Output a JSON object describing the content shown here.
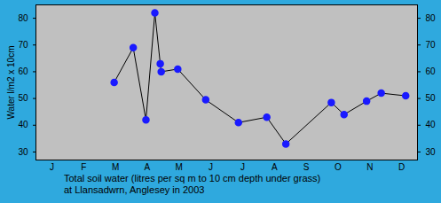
{
  "chart_data": {
    "type": "line",
    "title": "Total soil water (litres per sq m to 10 cm depth under grass)",
    "subtitle": "at Llansadwrn, Anglesey in 2003",
    "y_label": "Water l/m2 x 10cm",
    "x": [
      2.46,
      3.06,
      3.46,
      3.74,
      3.91,
      3.94,
      4.46,
      5.34,
      6.37,
      7.26,
      7.86,
      9.29,
      9.69,
      10.4,
      10.86,
      11.63
    ],
    "values": [
      56,
      69,
      42,
      82,
      63,
      60,
      61,
      49.5,
      41,
      43,
      33,
      48.5,
      44,
      49,
      52,
      51
    ],
    "color": "#1a1aff",
    "marker": "circle",
    "xlim": [
      0,
      12
    ],
    "xticks": [
      {
        "value": 0.5,
        "label": "J"
      },
      {
        "value": 1.5,
        "label": "F"
      },
      {
        "value": 2.5,
        "label": "M"
      },
      {
        "value": 3.5,
        "label": "A"
      },
      {
        "value": 4.5,
        "label": "M"
      },
      {
        "value": 5.5,
        "label": "J"
      },
      {
        "value": 6.5,
        "label": "J"
      },
      {
        "value": 7.5,
        "label": "A"
      },
      {
        "value": 8.5,
        "label": "S"
      },
      {
        "value": 9.5,
        "label": "O"
      },
      {
        "value": 10.5,
        "label": "N"
      },
      {
        "value": 11.5,
        "label": "D"
      }
    ],
    "ylim": [
      27,
      85
    ],
    "yticks": [
      30,
      40,
      50,
      60,
      70,
      80
    ],
    "grid": false
  }
}
